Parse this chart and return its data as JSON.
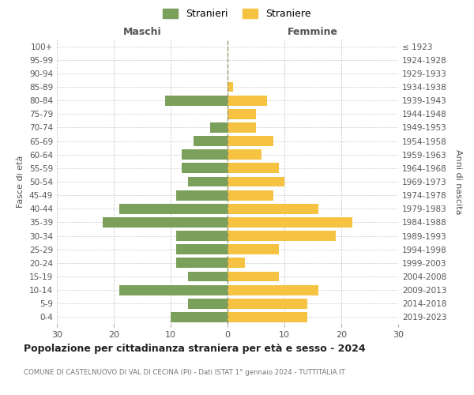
{
  "age_groups": [
    "100+",
    "95-99",
    "90-94",
    "85-89",
    "80-84",
    "75-79",
    "70-74",
    "65-69",
    "60-64",
    "55-59",
    "50-54",
    "45-49",
    "40-44",
    "35-39",
    "30-34",
    "25-29",
    "20-24",
    "15-19",
    "10-14",
    "5-9",
    "0-4"
  ],
  "birth_years": [
    "≤ 1923",
    "1924-1928",
    "1929-1933",
    "1934-1938",
    "1939-1943",
    "1944-1948",
    "1949-1953",
    "1954-1958",
    "1959-1963",
    "1964-1968",
    "1969-1973",
    "1974-1978",
    "1979-1983",
    "1984-1988",
    "1989-1993",
    "1994-1998",
    "1999-2003",
    "2004-2008",
    "2009-2013",
    "2014-2018",
    "2019-2023"
  ],
  "males": [
    0,
    0,
    0,
    0,
    11,
    0,
    3,
    6,
    8,
    8,
    7,
    9,
    19,
    22,
    9,
    9,
    9,
    7,
    19,
    7,
    10
  ],
  "females": [
    0,
    0,
    0,
    1,
    7,
    5,
    5,
    8,
    6,
    9,
    10,
    8,
    16,
    22,
    19,
    9,
    3,
    9,
    16,
    14,
    14
  ],
  "male_color": "#7ba05b",
  "female_color": "#f5c242",
  "background_color": "#ffffff",
  "grid_color": "#cccccc",
  "title": "Popolazione per cittadinanza straniera per età e sesso - 2024",
  "subtitle": "COMUNE DI CASTELNUOVO DI VAL DI CECINA (PI) - Dati ISTAT 1° gennaio 2024 - TUTTITALIA.IT",
  "xlabel_left": "Maschi",
  "xlabel_right": "Femmine",
  "ylabel_left": "Fasce di età",
  "ylabel_right": "Anni di nascita",
  "legend_male": "Stranieri",
  "legend_female": "Straniere",
  "xlim": 30
}
